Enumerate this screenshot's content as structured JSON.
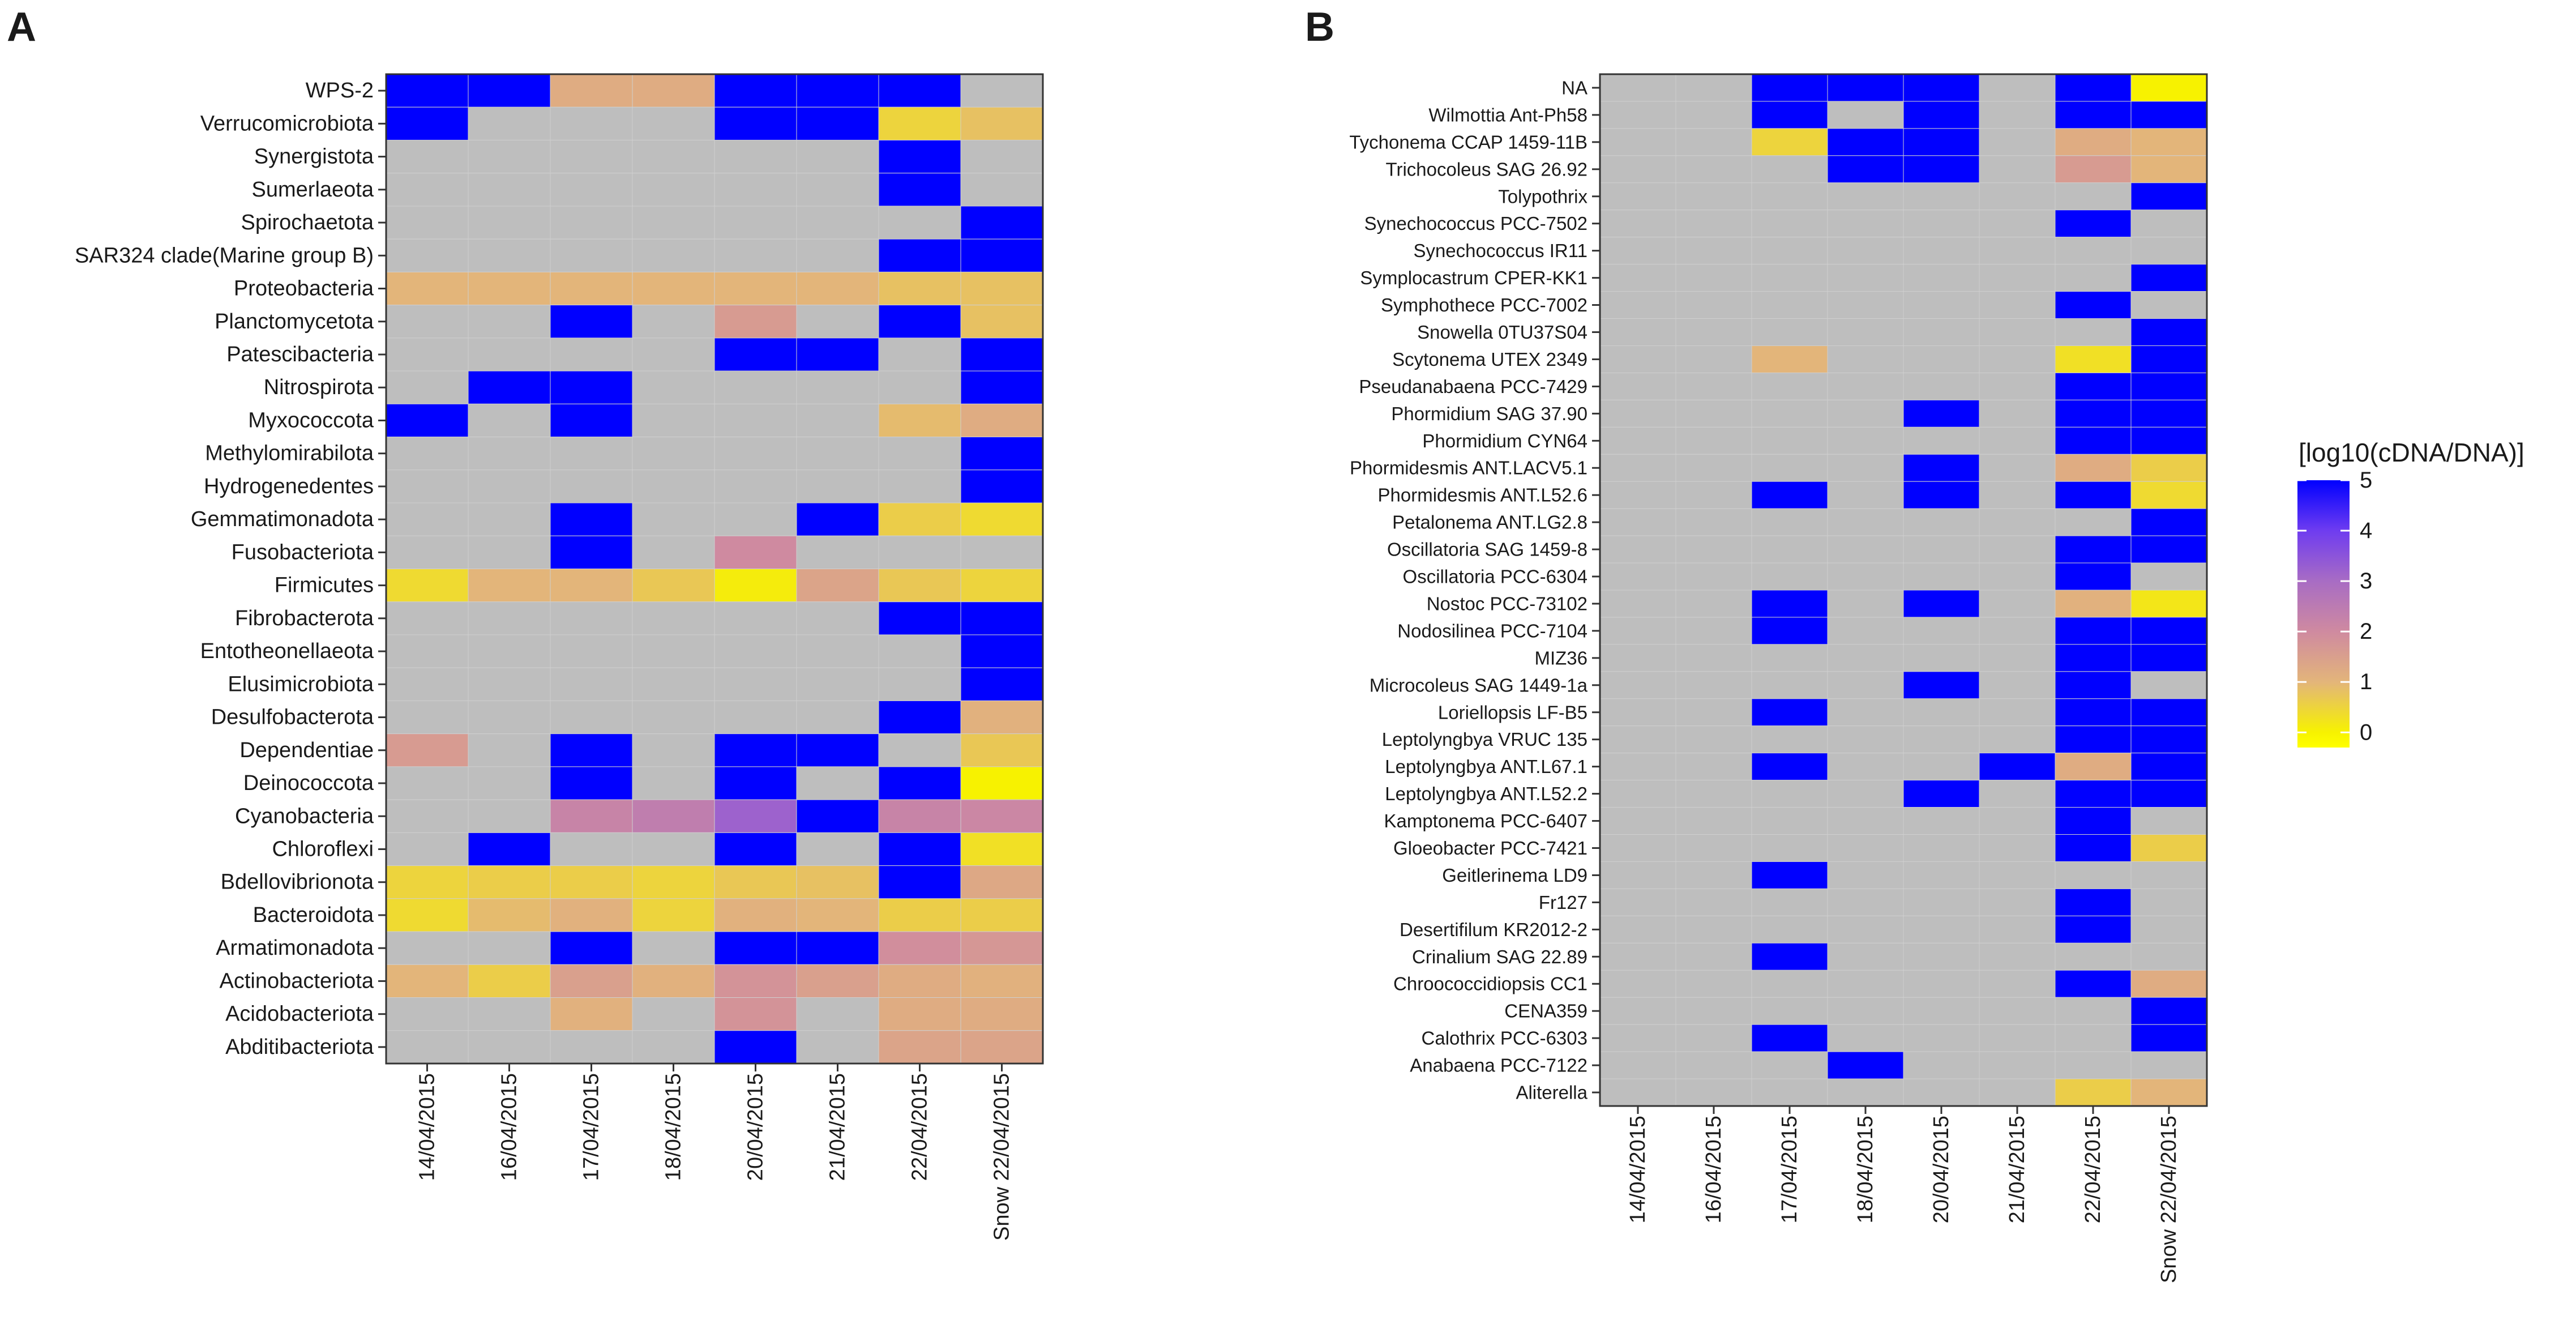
{
  "panels": [
    {
      "letter": "A",
      "rows": [
        "WPS-2",
        "Verrucomicrobiota",
        "Synergistota",
        "Sumerlaeota",
        "Spirochaetota",
        "SAR324 clade(Marine group B)",
        "Proteobacteria",
        "Planctomycetota",
        "Patescibacteria",
        "Nitrospirota",
        "Myxococcota",
        "Methylomirabilota",
        "Hydrogenedentes",
        "Gemmatimonadota",
        "Fusobacteriota",
        "Firmicutes",
        "Fibrobacterota",
        "Entotheonellaeota",
        "Elusimicrobiota",
        "Desulfobacterota",
        "Dependentiae",
        "Deinococcota",
        "Cyanobacteria",
        "Chloroflexi",
        "Bdellovibrionota",
        "Bacteroidota",
        "Armatimonadota",
        "Actinobacteriota",
        "Acidobacteriota",
        "Abditibacteriota"
      ],
      "columns": [
        "14/04/2015",
        "16/04/2015",
        "17/04/2015",
        "18/04/2015",
        "20/04/2015",
        "21/04/2015",
        "22/04/2015",
        "Snow 22/04/2015"
      ]
    },
    {
      "letter": "B",
      "rows": [
        "NA",
        "Wilmottia Ant-Ph58",
        "Tychonema CCAP 1459-11B",
        "Trichocoleus SAG 26.92",
        "Tolypothrix",
        "Synechococcus PCC-7502",
        "Synechococcus IR11",
        "Symplocastrum CPER-KK1",
        "Symphothece PCC-7002",
        "Snowella 0TU37S04",
        "Scytonema UTEX 2349",
        "Pseudanabaena PCC-7429",
        "Phormidium SAG 37.90",
        "Phormidium CYN64",
        "Phormidesmis ANT.LACV5.1",
        "Phormidesmis ANT.L52.6",
        "Petalonema ANT.LG2.8",
        "Oscillatoria SAG 1459-8",
        "Oscillatoria PCC-6304",
        "Nostoc PCC-73102",
        "Nodosilinea PCC-7104",
        "MIZ36",
        "Microcoleus SAG 1449-1a",
        "Loriellopsis LF-B5",
        "Leptolyngbya VRUC 135",
        "Leptolyngbya ANT.L67.1",
        "Leptolyngbya ANT.L52.2",
        "Kamptonema PCC-6407",
        "Gloeobacter PCC-7421",
        "Geitlerinema LD9",
        "Fr127",
        "Desertifilum KR2012-2",
        "Crinalium SAG 22.89",
        "Chroococcidiopsis CC1",
        "CENA359",
        "Calothrix PCC-6303",
        "Anabaena PCC-7122",
        "Aliterella"
      ],
      "columns": [
        "14/04/2015",
        "16/04/2015",
        "17/04/2015",
        "18/04/2015",
        "20/04/2015",
        "21/04/2015",
        "22/04/2015",
        "Snow 22/04/2015"
      ]
    }
  ],
  "chart_data": [
    {
      "type": "heatmap",
      "panel": "A",
      "title": "",
      "xlabel": "",
      "ylabel": "",
      "value_range": [
        0,
        5
      ],
      "missing_color": "#bebebe",
      "note": "null = no value (grey cell); values are log10(cDNA/DNA)",
      "x": [
        "14/04/2015",
        "16/04/2015",
        "17/04/2015",
        "18/04/2015",
        "20/04/2015",
        "21/04/2015",
        "22/04/2015",
        "Snow 22/04/2015"
      ],
      "y": [
        "WPS-2",
        "Verrucomicrobiota",
        "Synergistota",
        "Sumerlaeota",
        "Spirochaetota",
        "SAR324 clade(Marine group B)",
        "Proteobacteria",
        "Planctomycetota",
        "Patescibacteria",
        "Nitrospirota",
        "Myxococcota",
        "Methylomirabilota",
        "Hydrogenedentes",
        "Gemmatimonadota",
        "Fusobacteriota",
        "Firmicutes",
        "Fibrobacterota",
        "Entotheonellaeota",
        "Elusimicrobiota",
        "Desulfobacterota",
        "Dependentiae",
        "Deinococcota",
        "Cyanobacteria",
        "Chloroflexi",
        "Bdellovibrionota",
        "Bacteroidota",
        "Armatimonadota",
        "Actinobacteriota",
        "Acidobacteriota",
        "Abditibacteriota"
      ],
      "values": [
        [
          5,
          5,
          1.2,
          1.2,
          5,
          5,
          5,
          null
        ],
        [
          5,
          null,
          null,
          null,
          5,
          5,
          0.5,
          0.8
        ],
        [
          null,
          null,
          null,
          null,
          null,
          null,
          5,
          null
        ],
        [
          null,
          null,
          null,
          null,
          null,
          null,
          5,
          null
        ],
        [
          null,
          null,
          null,
          null,
          null,
          null,
          null,
          5
        ],
        [
          null,
          null,
          null,
          null,
          null,
          null,
          5,
          5
        ],
        [
          1.0,
          1.0,
          1.0,
          1.0,
          1.0,
          1.0,
          0.8,
          0.8
        ],
        [
          null,
          null,
          5,
          null,
          1.6,
          null,
          5,
          0.8
        ],
        [
          null,
          null,
          null,
          null,
          5,
          5,
          null,
          5
        ],
        [
          null,
          5,
          5,
          null,
          null,
          null,
          null,
          5
        ],
        [
          5,
          null,
          5,
          null,
          null,
          null,
          0.9,
          1.2
        ],
        [
          null,
          null,
          null,
          null,
          null,
          null,
          null,
          5
        ],
        [
          null,
          null,
          null,
          null,
          null,
          null,
          null,
          5
        ],
        [
          null,
          null,
          5,
          null,
          null,
          5,
          0.6,
          0.4
        ],
        [
          null,
          null,
          5,
          null,
          2.0,
          null,
          null,
          null
        ],
        [
          0.4,
          1.0,
          1.0,
          0.7,
          0.1,
          1.4,
          0.7,
          0.5
        ],
        [
          null,
          null,
          null,
          null,
          null,
          null,
          5,
          5
        ],
        [
          null,
          null,
          null,
          null,
          null,
          null,
          null,
          5
        ],
        [
          null,
          null,
          null,
          null,
          null,
          null,
          null,
          5
        ],
        [
          null,
          null,
          null,
          null,
          null,
          null,
          5,
          1.1
        ],
        [
          1.6,
          null,
          5,
          null,
          5,
          5,
          null,
          0.7
        ],
        [
          null,
          null,
          5,
          null,
          5,
          null,
          5,
          0
        ],
        [
          null,
          null,
          2.2,
          2.4,
          3.2,
          5,
          2.2,
          2.1
        ],
        [
          null,
          5,
          null,
          null,
          5,
          null,
          5,
          0.3
        ],
        [
          0.5,
          0.6,
          0.6,
          0.5,
          0.7,
          0.8,
          5,
          1.3
        ],
        [
          0.4,
          0.9,
          1.1,
          0.5,
          1.1,
          1.0,
          0.6,
          0.6
        ],
        [
          null,
          null,
          5,
          null,
          5,
          5,
          1.9,
          1.7
        ],
        [
          1.0,
          0.6,
          1.5,
          1.1,
          1.8,
          1.5,
          1.2,
          1.1
        ],
        [
          null,
          null,
          1.1,
          null,
          1.8,
          null,
          1.2,
          1.2
        ],
        [
          null,
          null,
          null,
          null,
          5,
          null,
          1.4,
          1.4
        ]
      ]
    },
    {
      "type": "heatmap",
      "panel": "B",
      "title": "",
      "xlabel": "",
      "ylabel": "",
      "value_range": [
        0,
        5
      ],
      "missing_color": "#bebebe",
      "note": "null = no value (grey cell); values are log10(cDNA/DNA)",
      "x": [
        "14/04/2015",
        "16/04/2015",
        "17/04/2015",
        "18/04/2015",
        "20/04/2015",
        "21/04/2015",
        "22/04/2015",
        "Snow 22/04/2015"
      ],
      "y": [
        "NA",
        "Wilmottia Ant-Ph58",
        "Tychonema CCAP 1459-11B",
        "Trichocoleus SAG 26.92",
        "Tolypothrix",
        "Synechococcus PCC-7502",
        "Synechococcus IR11",
        "Symplocastrum CPER-KK1",
        "Symphothece PCC-7002",
        "Snowella 0TU37S04",
        "Scytonema UTEX 2349",
        "Pseudanabaena PCC-7429",
        "Phormidium SAG 37.90",
        "Phormidium CYN64",
        "Phormidesmis ANT.LACV5.1",
        "Phormidesmis ANT.L52.6",
        "Petalonema ANT.LG2.8",
        "Oscillatoria SAG 1459-8",
        "Oscillatoria PCC-6304",
        "Nostoc PCC-73102",
        "Nodosilinea PCC-7104",
        "MIZ36",
        "Microcoleus SAG 1449-1a",
        "Loriellopsis LF-B5",
        "Leptolyngbya VRUC 135",
        "Leptolyngbya ANT.L67.1",
        "Leptolyngbya ANT.L52.2",
        "Kamptonema PCC-6407",
        "Gloeobacter PCC-7421",
        "Geitlerinema LD9",
        "Fr127",
        "Desertifilum KR2012-2",
        "Crinalium SAG 22.89",
        "Chroococcidiopsis CC1",
        "CENA359",
        "Calothrix PCC-6303",
        "Anabaena PCC-7122",
        "Aliterella"
      ],
      "values": [
        [
          null,
          null,
          5,
          5,
          5,
          null,
          5,
          0
        ],
        [
          null,
          null,
          5,
          null,
          5,
          null,
          5,
          5
        ],
        [
          null,
          null,
          0.5,
          5,
          5,
          null,
          1.2,
          1.0
        ],
        [
          null,
          null,
          null,
          5,
          5,
          null,
          1.6,
          1.0
        ],
        [
          null,
          null,
          null,
          null,
          null,
          null,
          null,
          5
        ],
        [
          null,
          null,
          null,
          null,
          null,
          null,
          5,
          null
        ],
        [
          null,
          null,
          null,
          null,
          null,
          null,
          null,
          null
        ],
        [
          null,
          null,
          null,
          null,
          null,
          null,
          null,
          5
        ],
        [
          null,
          null,
          null,
          null,
          null,
          null,
          5,
          null
        ],
        [
          null,
          null,
          null,
          null,
          null,
          null,
          null,
          5
        ],
        [
          null,
          null,
          1.0,
          null,
          null,
          null,
          0.3,
          5
        ],
        [
          null,
          null,
          null,
          null,
          null,
          null,
          5,
          5
        ],
        [
          null,
          null,
          null,
          null,
          5,
          null,
          5,
          5
        ],
        [
          null,
          null,
          null,
          null,
          null,
          null,
          5,
          5
        ],
        [
          null,
          null,
          null,
          null,
          5,
          null,
          1.2,
          0.6
        ],
        [
          null,
          null,
          5,
          null,
          5,
          null,
          5,
          0.4
        ],
        [
          null,
          null,
          null,
          null,
          null,
          null,
          null,
          5
        ],
        [
          null,
          null,
          null,
          null,
          null,
          null,
          5,
          5
        ],
        [
          null,
          null,
          null,
          null,
          null,
          null,
          5,
          null
        ],
        [
          null,
          null,
          5,
          null,
          5,
          null,
          1.1,
          0.2
        ],
        [
          null,
          null,
          5,
          null,
          null,
          null,
          5,
          5
        ],
        [
          null,
          null,
          null,
          null,
          null,
          null,
          5,
          5
        ],
        [
          null,
          null,
          null,
          null,
          5,
          null,
          5,
          null
        ],
        [
          null,
          null,
          5,
          null,
          null,
          null,
          5,
          5
        ],
        [
          null,
          null,
          null,
          null,
          null,
          null,
          5,
          5
        ],
        [
          null,
          null,
          5,
          null,
          null,
          5,
          1.2,
          5
        ],
        [
          null,
          null,
          null,
          null,
          5,
          null,
          5,
          5
        ],
        [
          null,
          null,
          null,
          null,
          null,
          null,
          5,
          null
        ],
        [
          null,
          null,
          null,
          null,
          null,
          null,
          5,
          0.6
        ],
        [
          null,
          null,
          5,
          null,
          null,
          null,
          null,
          null
        ],
        [
          null,
          null,
          null,
          null,
          null,
          null,
          5,
          null
        ],
        [
          null,
          null,
          null,
          null,
          null,
          null,
          5,
          null
        ],
        [
          null,
          null,
          5,
          null,
          null,
          null,
          null,
          null
        ],
        [
          null,
          null,
          null,
          null,
          null,
          null,
          5,
          1.2
        ],
        [
          null,
          null,
          null,
          null,
          null,
          null,
          null,
          5
        ],
        [
          null,
          null,
          5,
          null,
          null,
          null,
          null,
          5
        ],
        [
          null,
          null,
          null,
          5,
          null,
          null,
          null,
          null
        ],
        [
          null,
          null,
          null,
          null,
          null,
          null,
          0.6,
          1.0
        ]
      ]
    }
  ],
  "legend": {
    "title": "[log10(cDNA/DNA)]",
    "ticks": [
      "5",
      "4",
      "3",
      "2",
      "1",
      "0"
    ],
    "tick_values": [
      5,
      4,
      3,
      2,
      1,
      0
    ],
    "min": -0.3,
    "max": 5,
    "stops": [
      {
        "v": 0,
        "color": "#f7f200"
      },
      {
        "v": 1,
        "color": "#e3b57a"
      },
      {
        "v": 2,
        "color": "#cf8aa0"
      },
      {
        "v": 3,
        "color": "#a86cc4"
      },
      {
        "v": 4,
        "color": "#6f3cf0"
      },
      {
        "v": 5,
        "color": "#0000ff"
      }
    ]
  }
}
